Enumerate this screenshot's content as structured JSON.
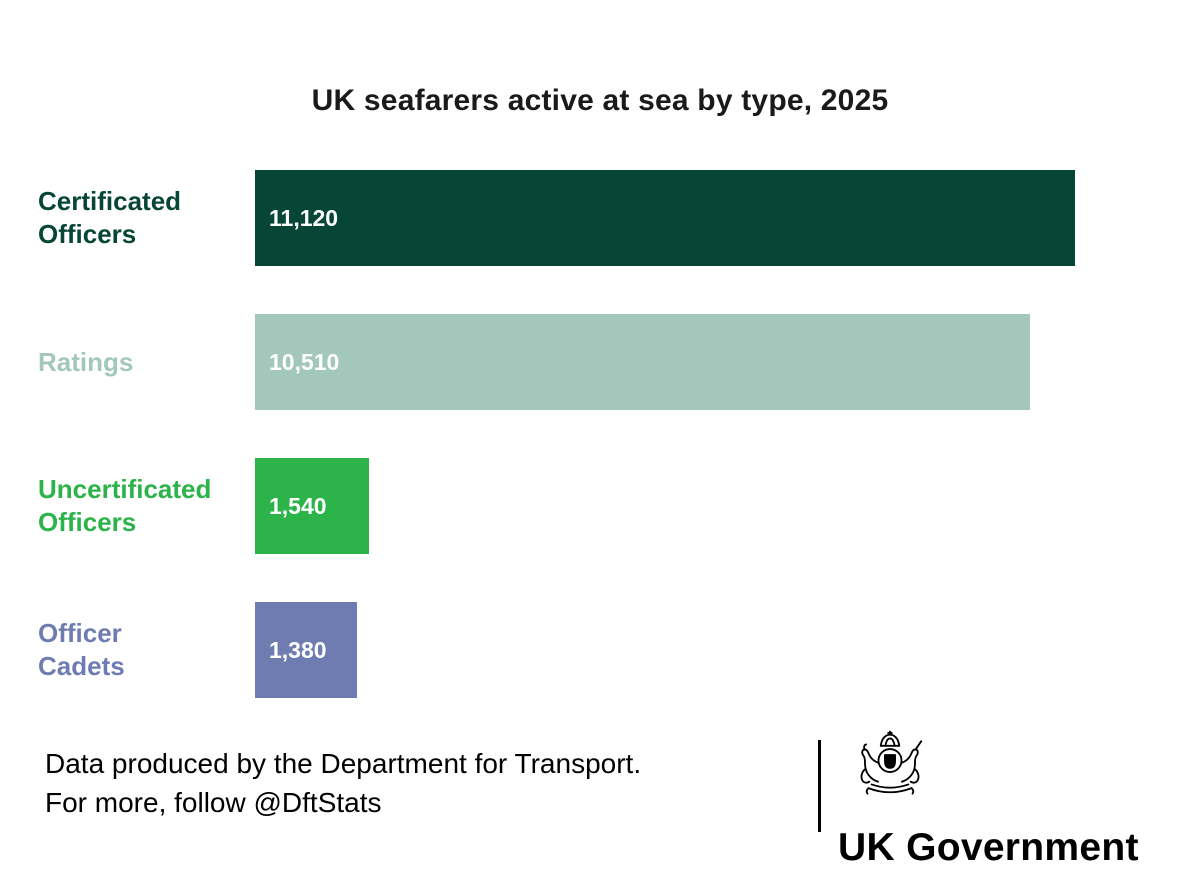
{
  "chart_data": {
    "type": "bar",
    "orientation": "horizontal",
    "title": "UK seafarers active at sea by type, 2025",
    "categories": [
      "Certificated Officers",
      "Ratings",
      "Uncertificated Officers",
      "Officer Cadets"
    ],
    "label_lines": [
      [
        "Certificated",
        "Officers"
      ],
      [
        "Ratings"
      ],
      [
        "Uncertificated",
        "Officers"
      ],
      [
        "Officer",
        "Cadets"
      ]
    ],
    "values": [
      11120,
      10510,
      1540,
      1380
    ],
    "value_labels": [
      "11,120",
      "10,510",
      "1,540",
      "1,380"
    ],
    "bar_colors": [
      "#074636",
      "#a4c7bb",
      "#2cb34a",
      "#6e7cb1"
    ],
    "value_label_color": "#ffffff",
    "xlim": [
      0,
      11120
    ],
    "grid": false,
    "legend": false,
    "axis_ticks": false
  },
  "footer": {
    "line1": "Data produced by the Department for Transport.",
    "line2": "For more, follow @DftStats",
    "logo_text": "UK Government",
    "crest_icon": "royal-coat-of-arms",
    "divider_color": "#000000"
  }
}
